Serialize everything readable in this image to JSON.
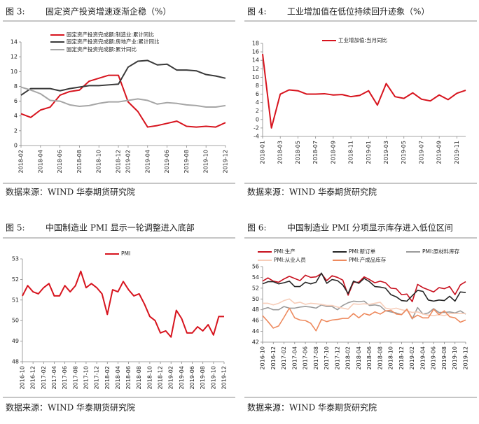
{
  "chart_data": [
    {
      "type": "line",
      "figure": "图 3:",
      "title": "固定资产投资增速逐渐企稳（%）",
      "source": "数据来源：WIND  华泰期货研究院",
      "categories": [
        "2018-02",
        null,
        "2018-04",
        null,
        "2018-06",
        null,
        "2018-08",
        null,
        "2018-10",
        null,
        "2018-12",
        "2019-02",
        null,
        "2019-04",
        null,
        "2019-06",
        null,
        "2019-08",
        null,
        "2019-10",
        null,
        "2019-12"
      ],
      "series": [
        {
          "name": "固定资产投资完成额:制造业:累计同比",
          "color": "#d7141e",
          "values": [
            4.3,
            3.8,
            4.8,
            5.2,
            6.8,
            7.3,
            7.5,
            8.7,
            9.1,
            9.5,
            9.5,
            5.9,
            4.6,
            2.5,
            2.7,
            3.0,
            3.3,
            2.6,
            2.5,
            2.6,
            2.5,
            3.1
          ]
        },
        {
          "name": "固定资产投资完成额:房地产业:累计同比",
          "color": "#3a3a3a",
          "values": [
            6.8,
            7.7,
            7.7,
            7.7,
            7.4,
            7.7,
            7.9,
            8.1,
            8.1,
            8.2,
            8.3,
            10.6,
            11.4,
            11.5,
            10.9,
            11.0,
            10.2,
            10.2,
            10.1,
            9.6,
            9.4,
            9.1
          ]
        },
        {
          "name": "固定资产投资完成额:累计同比",
          "color": "#a6a6a6",
          "values": [
            7.9,
            7.5,
            7.0,
            6.1,
            6.0,
            5.5,
            5.3,
            5.4,
            5.7,
            5.9,
            5.9,
            6.1,
            6.3,
            6.1,
            5.6,
            5.8,
            5.7,
            5.5,
            5.4,
            5.2,
            5.2,
            5.4
          ]
        }
      ],
      "ylim": [
        0,
        14
      ],
      "yticks": [
        0,
        2,
        4,
        6,
        8,
        10,
        12,
        14
      ]
    },
    {
      "type": "line",
      "figure": "图 4:",
      "title": "工业增加值在低位持续回升迹象（%）",
      "source": "数据来源：WIND  华泰期货研究院",
      "categories": [
        "2018-01",
        null,
        "2018-03",
        null,
        "2018-05",
        null,
        "2018-07",
        null,
        "2018-09",
        null,
        "2018-11",
        null,
        "2019-01",
        null,
        "2019-03",
        null,
        "2019-05",
        null,
        "2019-07",
        null,
        "2019-09",
        null,
        "2019-11",
        null
      ],
      "series": [
        {
          "name": "工业增加值:当月同比",
          "color": "#d7141e",
          "values": [
            15.5,
            -2.0,
            6.0,
            7.0,
            6.8,
            6.0,
            6.0,
            6.1,
            5.8,
            5.9,
            5.4,
            5.7,
            6.8,
            3.4,
            8.5,
            5.4,
            5.0,
            6.3,
            4.8,
            4.4,
            5.8,
            4.7,
            6.2,
            6.9
          ]
        }
      ],
      "ylim": [
        -4,
        18
      ],
      "yticks": [
        -4,
        -2,
        0,
        2,
        4,
        6,
        8,
        10,
        12,
        14,
        16,
        18
      ]
    },
    {
      "type": "line",
      "figure": "图 5:",
      "title": "中国制造业 PMI 显示一轮调整进入底部",
      "source": "数据来源：WIND  华泰期货研究院",
      "categories": [
        "2016-10",
        null,
        "2016-12",
        null,
        "2017-02",
        null,
        "2017-04",
        null,
        "2017-06",
        null,
        "2017-08",
        null,
        "2017-10",
        null,
        "2017-12",
        null,
        "2018-02",
        null,
        "2018-04",
        null,
        "2018-06",
        null,
        "2018-08",
        null,
        "2018-10",
        null,
        "2018-12",
        null,
        "2019-02",
        null,
        "2019-04",
        null,
        "2019-06",
        null,
        "2019-08",
        null,
        "2019-10",
        null,
        "2019-12"
      ],
      "series": [
        {
          "name": "PMI",
          "color": "#d7141e",
          "values": [
            51.2,
            51.7,
            51.4,
            51.3,
            51.6,
            51.8,
            51.2,
            51.2,
            51.7,
            51.4,
            51.7,
            52.4,
            51.6,
            51.8,
            51.6,
            51.3,
            50.3,
            51.5,
            51.4,
            51.9,
            51.5,
            51.2,
            51.3,
            50.8,
            50.2,
            50.0,
            49.4,
            49.5,
            49.2,
            50.5,
            50.1,
            49.4,
            49.4,
            49.7,
            49.5,
            49.8,
            49.3,
            50.2,
            50.2
          ]
        }
      ],
      "ylim": [
        48,
        53
      ],
      "yticks": [
        48,
        49,
        50,
        51,
        52,
        53
      ]
    },
    {
      "type": "line",
      "figure": "图 6:",
      "title": "中国制造业 PMI 分项显示库存进入低位区间",
      "source": "数据来源：WIND  华泰期货研究院",
      "categories": [
        "2016-10",
        null,
        "2016-12",
        null,
        "2017-02",
        null,
        "2017-04",
        null,
        "2017-06",
        null,
        "2017-08",
        null,
        "2017-10",
        null,
        "2017-12",
        null,
        "2018-02",
        null,
        "2018-04",
        null,
        "2018-06",
        null,
        "2018-08",
        null,
        "2018-10",
        null,
        "2018-12",
        null,
        "2019-02",
        null,
        "2019-04",
        null,
        "2019-06",
        null,
        "2019-08",
        null,
        "2019-10",
        null,
        "2019-12"
      ],
      "series": [
        {
          "name": "PMI:生产",
          "color": "#c8101e",
          "values": [
            53.3,
            53.9,
            53.3,
            53.1,
            53.7,
            54.2,
            53.8,
            53.4,
            54.4,
            54.0,
            54.1,
            54.7,
            53.4,
            54.3,
            54.0,
            53.5,
            50.7,
            53.1,
            53.1,
            54.1,
            53.6,
            53.0,
            53.3,
            53.0,
            52.0,
            51.9,
            50.8,
            50.9,
            49.5,
            52.7,
            52.1,
            51.7,
            51.3,
            52.1,
            51.9,
            52.3,
            50.8,
            52.6,
            53.2
          ]
        },
        {
          "name": "PMI:新订单",
          "color": "#262626",
          "values": [
            52.8,
            53.2,
            53.2,
            52.8,
            53.0,
            53.3,
            52.3,
            52.3,
            53.1,
            52.8,
            53.1,
            54.8,
            52.9,
            53.6,
            53.4,
            52.6,
            51.0,
            53.3,
            52.9,
            53.8,
            53.2,
            52.3,
            52.2,
            52.0,
            50.8,
            50.4,
            49.7,
            49.6,
            50.6,
            51.6,
            51.4,
            49.8,
            49.6,
            49.8,
            49.7,
            50.5,
            49.6,
            51.3,
            51.2
          ]
        },
        {
          "name": "PMI:原材料库存",
          "color": "#9a9a9a",
          "values": [
            48.1,
            48.4,
            48.0,
            48.0,
            48.6,
            48.3,
            48.3,
            48.5,
            48.6,
            48.5,
            48.3,
            48.9,
            48.6,
            48.6,
            48.0,
            48.8,
            49.3,
            49.6,
            49.5,
            49.6,
            48.8,
            48.9,
            48.7,
            47.8,
            47.6,
            47.4,
            47.1,
            48.1,
            46.3,
            48.4,
            47.2,
            47.4,
            48.2,
            47.5,
            47.5,
            47.6,
            47.4,
            47.8,
            47.2
          ]
        },
        {
          "name": "PMI:从业人员",
          "color": "#f7cdb9",
          "values": [
            49.2,
            49.2,
            48.9,
            49.2,
            49.7,
            50.0,
            49.2,
            49.4,
            49.0,
            49.2,
            49.1,
            49.0,
            48.8,
            48.8,
            48.5,
            48.3,
            48.1,
            49.1,
            49.0,
            49.1,
            49.0,
            49.2,
            49.4,
            48.3,
            48.1,
            48.3,
            48.0,
            47.8,
            47.5,
            47.6,
            47.2,
            47.0,
            46.9,
            47.1,
            46.9,
            47.3,
            47.3,
            47.3,
            47.3
          ]
        },
        {
          "name": "PMI:产成品库存",
          "color": "#ee8a5e",
          "values": [
            46.9,
            45.8,
            44.6,
            45.0,
            46.6,
            48.3,
            46.5,
            46.1,
            46.0,
            45.5,
            44.1,
            46.2,
            45.8,
            46.1,
            46.2,
            46.4,
            46.4,
            47.3,
            46.5,
            47.3,
            47.0,
            47.6,
            47.2,
            47.8,
            47.9,
            47.2,
            47.1,
            48.1,
            46.4,
            47.0,
            46.5,
            46.5,
            48.1,
            47.1,
            47.8,
            46.7,
            46.5,
            45.7,
            46.1
          ]
        }
      ],
      "ylim": [
        42,
        56
      ],
      "yticks": [
        42,
        44,
        46,
        48,
        50,
        52,
        54,
        56
      ]
    }
  ]
}
